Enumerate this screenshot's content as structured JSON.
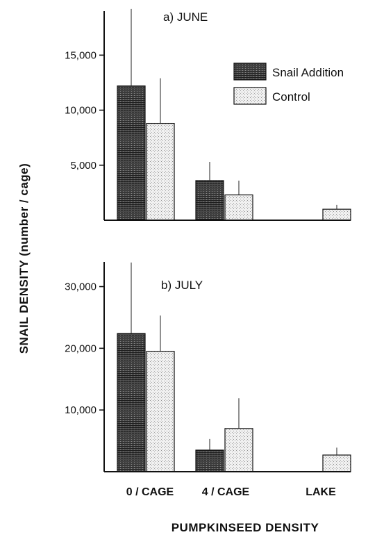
{
  "figure": {
    "ylabel": "SNAIL  DENSITY  (number / cage)",
    "xlabel": "PUMPKINSEED  DENSITY",
    "categories": [
      "0 / CAGE",
      "4 / CAGE",
      "LAKE"
    ],
    "legend": [
      {
        "label": "Snail Addition",
        "color": "#3a3a3a"
      },
      {
        "label": "Control",
        "color": "#e4e4e4"
      }
    ]
  },
  "chart_data": [
    {
      "type": "bar",
      "title": "a)  JUNE",
      "categories": [
        "0 / CAGE",
        "4 / CAGE",
        "LAKE"
      ],
      "series": [
        {
          "name": "Snail Addition",
          "values": [
            12200,
            3600,
            null
          ],
          "errors": [
            7000,
            1700,
            null
          ]
        },
        {
          "name": "Control",
          "values": [
            8800,
            2300,
            1000
          ],
          "errors": [
            4100,
            1300,
            400
          ]
        }
      ],
      "ylim": [
        0,
        19000
      ],
      "yticks": [
        5000,
        10000,
        15000
      ],
      "ytick_labels": [
        "5,000",
        "10,000",
        "15,000"
      ],
      "legend_position": "top-right"
    },
    {
      "type": "bar",
      "title": "b)  JULY",
      "categories": [
        "0 / CAGE",
        "4 / CAGE",
        "LAKE"
      ],
      "series": [
        {
          "name": "Snail Addition",
          "values": [
            22400,
            3500,
            null
          ],
          "errors": [
            11500,
            1800,
            null
          ]
        },
        {
          "name": "Control",
          "values": [
            19500,
            7000,
            2700
          ],
          "errors": [
            5800,
            4900,
            1200
          ]
        }
      ],
      "ylim": [
        0,
        34000
      ],
      "yticks": [
        10000,
        20000,
        30000
      ],
      "ytick_labels": [
        "10,000",
        "20,000",
        "30,000"
      ]
    }
  ]
}
